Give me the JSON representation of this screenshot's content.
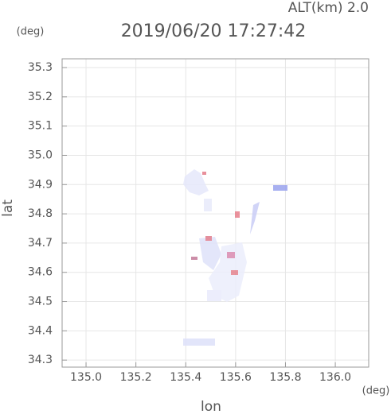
{
  "chart_data": {
    "type": "map",
    "title": "2019/06/20 17:27:42",
    "subtitle": "ALT(km) 2.0",
    "y_unit": "(deg)",
    "x_unit": "(deg)",
    "x_label": "lon",
    "y_label": "lat",
    "xlim": [
      134.904,
      136.134
    ],
    "ylim": [
      34.276,
      35.33
    ],
    "xticks": [
      {
        "value": 135.0,
        "label": "135.0"
      },
      135.2,
      135.4,
      135.6,
      135.8,
      {
        "value": 136.0,
        "label": "136.0"
      }
    ],
    "yticks": [
      34.3,
      34.4,
      34.5,
      34.6,
      34.7,
      34.8,
      34.9,
      {
        "value": 35.0,
        "label": "35.0"
      },
      35.1,
      35.2,
      35.3
    ],
    "grid": true
  }
}
